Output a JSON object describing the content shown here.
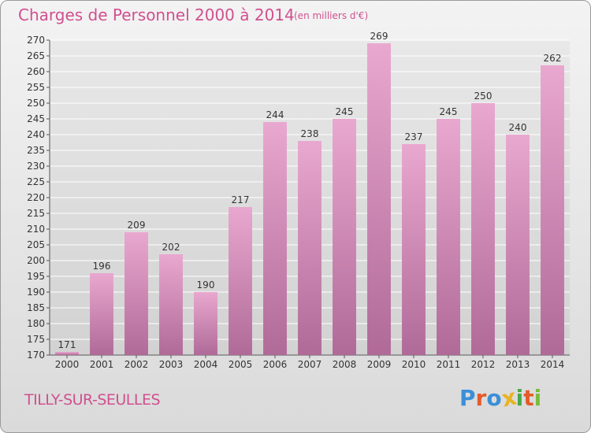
{
  "title": "Charges de Personnel 2000 à 2014",
  "subtitle": "(en milliers d'€)",
  "town": "TILLY-SUR-SEULLES",
  "logo": {
    "text": "Proxiti",
    "letters": [
      "P",
      "r",
      "o",
      "x",
      "i",
      "t",
      "i"
    ],
    "colors": [
      "#3a8fd8",
      "#e35c2a",
      "#3a8fd8",
      "#e8b420",
      "#4aa84a",
      "#e35c2a",
      "#7bbd3a"
    ]
  },
  "colors": {
    "accent": "#d0508f",
    "bar_top": "#e9a8cf",
    "bar_bottom": "#b06a98",
    "grid": "#ffffff"
  },
  "chart_data": {
    "type": "bar",
    "categories": [
      "2000",
      "2001",
      "2002",
      "2003",
      "2004",
      "2005",
      "2006",
      "2007",
      "2008",
      "2009",
      "2010",
      "2011",
      "2012",
      "2013",
      "2014"
    ],
    "values": [
      171,
      196,
      209,
      202,
      190,
      217,
      244,
      238,
      245,
      269,
      237,
      245,
      250,
      240,
      262
    ],
    "ylim": [
      170,
      270
    ],
    "ytick_step": 5,
    "grid": true
  }
}
